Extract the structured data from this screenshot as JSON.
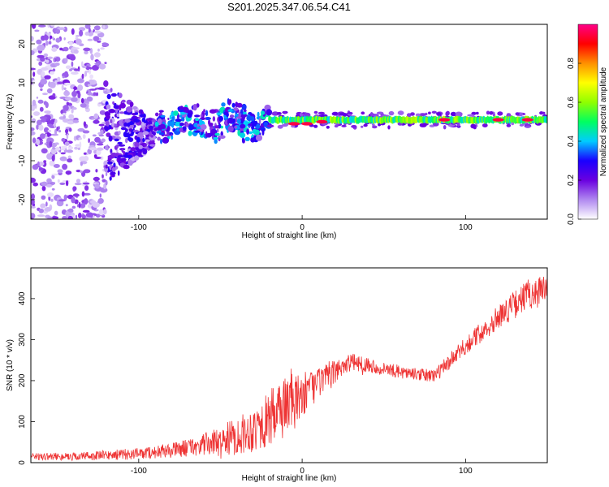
{
  "figure_title": "S201.2025.347.06.54.C41",
  "chart_data": [
    {
      "type": "heatmap",
      "title": "S201.2025.347.06.54.C41",
      "xlabel": "Height of straight line (km)",
      "ylabel": "Frequency (Hz)",
      "xlim": [
        -166,
        150
      ],
      "ylim": [
        -25,
        25
      ],
      "xticks": [
        -100,
        0,
        100
      ],
      "yticks": [
        -20,
        -10,
        0,
        10,
        20
      ],
      "colorbar": {
        "label": "Normalized spectral amplitude",
        "range": [
          0,
          1
        ],
        "ticks": [
          "0.0",
          "0.2",
          "0.4",
          "0.6",
          "0.8"
        ],
        "colormap": [
          "#ffffff",
          "#b088f0",
          "#6a00e0",
          "#1a00ff",
          "#00ccff",
          "#00ff60",
          "#90ff00",
          "#ffff00",
          "#ff9000",
          "#ff0000",
          "#ff0088"
        ]
      },
      "segments": [
        {
          "x_start": -166,
          "x_end": -120,
          "pattern": "scattered_noise",
          "freq_spread": 25,
          "amplitude": 0.12
        },
        {
          "x_start": -120,
          "x_end": -90,
          "pattern": "widening_cluster",
          "freq_center": -3,
          "freq_spread": 10,
          "amplitude": 0.2
        },
        {
          "x_start": -90,
          "x_end": -20,
          "pattern": "blob_band",
          "freq_center": 0,
          "freq_spread": 4,
          "amplitude": 0.3
        },
        {
          "x_start": -20,
          "x_end": 150,
          "pattern": "narrow_band",
          "freq_center": 0.5,
          "freq_spread": 1.5,
          "amplitude": 0.5
        }
      ],
      "hotspots": [
        {
          "x": -5,
          "f": -0.5,
          "amplitude": 0.95
        },
        {
          "x": 3,
          "f": -0.5,
          "amplitude": 0.95
        },
        {
          "x": 12,
          "f": 0,
          "amplitude": 0.95
        },
        {
          "x": 87,
          "f": 0.5,
          "amplitude": 0.95
        },
        {
          "x": 120,
          "f": 0.5,
          "amplitude": 0.95
        },
        {
          "x": 138,
          "f": 0.5,
          "amplitude": 0.95
        }
      ]
    },
    {
      "type": "line",
      "xlabel": "Height of straight line (km)",
      "ylabel": "SNR (10 * v/v)",
      "xlim": [
        -166,
        150
      ],
      "ylim": [
        0,
        475
      ],
      "xticks": [
        -100,
        0,
        100
      ],
      "yticks": [
        0,
        100,
        200,
        300,
        400
      ],
      "series": [
        {
          "name": "SNR",
          "color": "#ee3333",
          "x": [
            -166,
            -140,
            -120,
            -100,
            -80,
            -65,
            -55,
            -45,
            -35,
            -25,
            -18,
            -12,
            -8,
            -5,
            0,
            5,
            10,
            15,
            20,
            25,
            30,
            40,
            50,
            60,
            70,
            80,
            85,
            90,
            100,
            110,
            120,
            130,
            140,
            150
          ],
          "y": [
            15,
            15,
            18,
            22,
            30,
            40,
            48,
            58,
            72,
            92,
            112,
            135,
            158,
            140,
            165,
            180,
            195,
            205,
            220,
            238,
            245,
            240,
            228,
            222,
            215,
            212,
            225,
            245,
            285,
            320,
            355,
            385,
            415,
            420
          ],
          "noise": [
            8,
            10,
            12,
            14,
            18,
            24,
            32,
            42,
            50,
            62,
            72,
            82,
            90,
            70,
            55,
            45,
            40,
            35,
            30,
            25,
            22,
            18,
            16,
            16,
            15,
            18,
            18,
            20,
            22,
            26,
            30,
            34,
            40,
            40
          ]
        }
      ]
    }
  ]
}
